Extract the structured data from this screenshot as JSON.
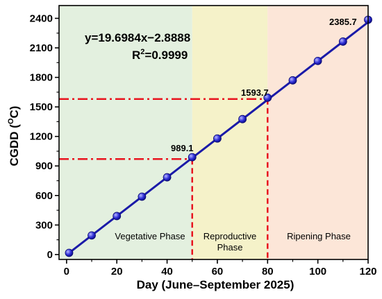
{
  "chart_data": {
    "type": "line",
    "xlabel": "Day (June–September 2025)",
    "ylabel_main": "CGDD (",
    "ylabel_sup": "O",
    "ylabel_end": "C)",
    "xlim": [
      -3,
      120
    ],
    "ylim": [
      -50,
      2530
    ],
    "x_ticks": [
      0,
      20,
      40,
      60,
      80,
      100,
      120
    ],
    "y_ticks": [
      0,
      300,
      600,
      900,
      1200,
      1500,
      1800,
      2100,
      2400
    ],
    "series": [
      {
        "x": [
          1,
          10,
          20,
          30,
          40,
          50,
          60,
          70,
          80,
          90,
          100,
          110,
          120
        ],
        "y": [
          17,
          194,
          391,
          588,
          785,
          989.1,
          1179,
          1376,
          1593.7,
          1770,
          1967,
          2164,
          2385.7
        ],
        "color": "#1414b4"
      }
    ],
    "fit": {
      "equation": "y=19.6984x−2.8888",
      "r2_prefix": "R",
      "r2_sup": "2",
      "r2_value": "=0.9999",
      "slope": 19.6984,
      "intercept": -2.8888
    },
    "phases": [
      {
        "label": "Vegetative Phase",
        "x_start": -3,
        "x_end": 50,
        "color": "#e3f0df"
      },
      {
        "label_line1": "Reproductive",
        "label_line2": "Phase",
        "x_start": 50,
        "x_end": 80,
        "color": "#f5f2c9"
      },
      {
        "label": "Ripening Phase",
        "x_start": 80,
        "x_end": 120,
        "color": "#fce6d8"
      }
    ],
    "annotations": [
      {
        "text": "989.1",
        "x": 50,
        "y": 989.1
      },
      {
        "text": "1593.7",
        "x": 80,
        "y": 1593.7
      },
      {
        "text": "2385.7",
        "x": 120,
        "y": 2385.7
      }
    ],
    "reference_lines": [
      {
        "x": 50,
        "y": 970
      },
      {
        "x": 80,
        "y": 1580
      }
    ],
    "reference_color": "#e8141e",
    "grid": false
  }
}
